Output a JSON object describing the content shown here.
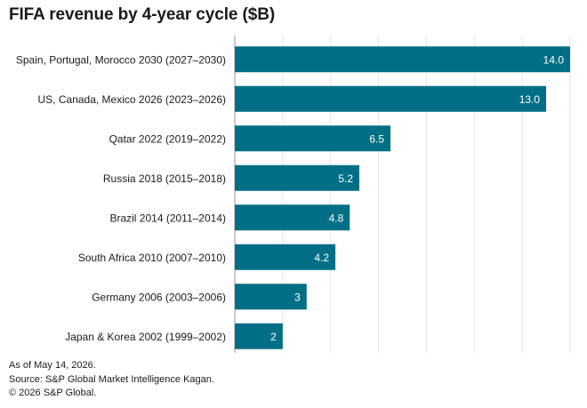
{
  "chart_data": {
    "type": "bar",
    "orientation": "horizontal",
    "title": "FIFA revenue by 4-year cycle ($B)",
    "xlabel": "",
    "ylabel": "",
    "xlim": [
      0,
      14
    ],
    "grid": true,
    "bar_color": "#006f86",
    "categories": [
      "Spain, Portugal, Morocco 2030 (2027–2030)",
      "US, Canada, Mexico 2026 (2023–2026)",
      "Qatar 2022 (2019–2022)",
      "Russia 2018 (2015–2018)",
      "Brazil 2014 (2011–2014)",
      "South Africa 2010 (2007–2010)",
      "Germany 2006 (2003–2006)",
      "Japan & Korea 2002 (1999–2002)"
    ],
    "values": [
      14.0,
      13.0,
      6.5,
      5.2,
      4.8,
      4.2,
      3,
      2
    ],
    "value_labels": [
      "14.0",
      "13.0",
      "6.5",
      "5.2",
      "4.8",
      "4.2",
      "3",
      "2"
    ]
  },
  "footer": {
    "date_note": "As of May 14, 2026.",
    "source": "Source: S&P Global Market Intelligence Kagan.",
    "copyright": "© 2026 S&P Global."
  }
}
